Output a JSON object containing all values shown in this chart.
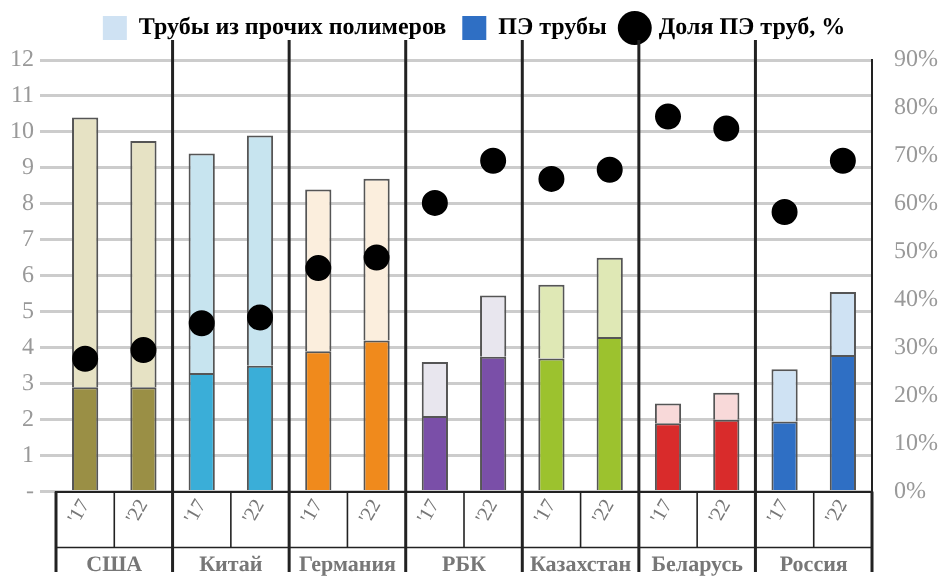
{
  "chart_data": {
    "type": "bar",
    "stacked": true,
    "categories": [
      "'17",
      "'22",
      "'17",
      "'22",
      "'17",
      "'22",
      "'17",
      "'22",
      "'17",
      "'22",
      "'17",
      "'22",
      "'17",
      "'22"
    ],
    "annotations": [
      "США",
      "Китай",
      "Германия",
      "РБК",
      "Казахстан",
      "Беларусь",
      "Россия"
    ],
    "series": [
      {
        "name": "ПЭ трубы",
        "color": "#2f6fc4",
        "colors": [
          "#9a8f45",
          "#9a8f45",
          "#3aaed8",
          "#3aaed8",
          "#f08a1c",
          "#f08a1c",
          "#7a4fa8",
          "#7a4fa8",
          "#9cc22e",
          "#9cc22e",
          "#d92b2b",
          "#d92b2b",
          "#2f6fc4",
          "#2f6fc4"
        ],
        "values": [
          2.9,
          2.9,
          3.3,
          3.5,
          3.9,
          4.2,
          2.1,
          3.75,
          3.7,
          4.3,
          1.9,
          2.0,
          1.95,
          3.8
        ]
      },
      {
        "name": "Трубы из прочих полимеров",
        "color": "#cfe2f3",
        "colors": [
          "#e6e2c4",
          "#e6e2c4",
          "#c7e4ef",
          "#c7e4ef",
          "#fbeedd",
          "#fbeedd",
          "#e8e6ee",
          "#e8e6ee",
          "#dfe8b5",
          "#dfe8b5",
          "#f8d9d9",
          "#f8d9d9",
          "#cfe2f3",
          "#cfe2f3"
        ],
        "values": [
          7.5,
          6.85,
          6.1,
          6.4,
          4.5,
          4.5,
          1.5,
          1.7,
          2.05,
          2.2,
          0.55,
          0.75,
          1.45,
          1.75
        ]
      },
      {
        "name": "Доля ПЭ труб, %",
        "type": "scatter",
        "axis": "y2",
        "color": "#000000",
        "values": [
          27.7,
          29.5,
          35.1,
          36.3,
          46.6,
          48.8,
          60.2,
          69,
          65.2,
          67.1,
          78.2,
          75.7,
          58.3,
          69
        ]
      }
    ],
    "ylim": [
      0,
      12
    ],
    "yticks": [
      {
        "value": 0,
        "label": "-"
      },
      1,
      2,
      3,
      4,
      5,
      6,
      7,
      8,
      9,
      10,
      11,
      12
    ],
    "y2lim": [
      0,
      90
    ],
    "y2ticks": [
      {
        "value": 0,
        "label": "0%"
      },
      {
        "value": 10,
        "label": "10%"
      },
      {
        "value": 20,
        "label": "20%"
      },
      {
        "value": 30,
        "label": "30%"
      },
      {
        "value": 40,
        "label": "40%"
      },
      {
        "value": 50,
        "label": "50%"
      },
      {
        "value": 60,
        "label": "60%"
      },
      {
        "value": 70,
        "label": "70%"
      },
      {
        "value": 80,
        "label": "80%"
      },
      {
        "value": 90,
        "label": "90%"
      }
    ],
    "grid": "y",
    "legend": "top",
    "marker": "circle"
  }
}
